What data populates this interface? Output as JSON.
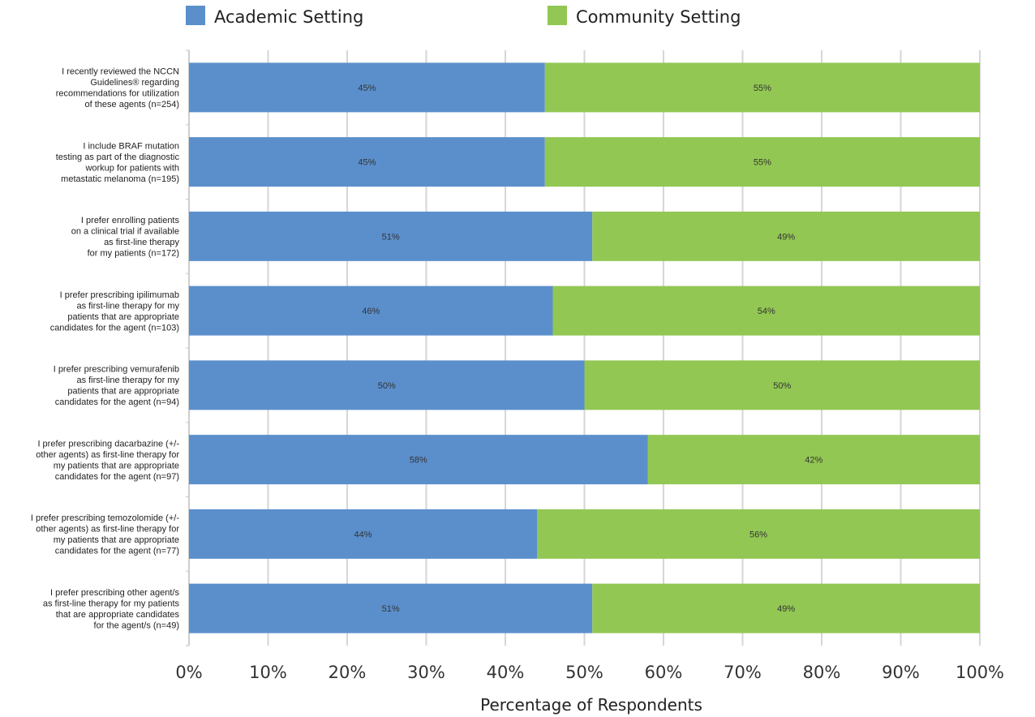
{
  "chart_data": {
    "type": "bar",
    "orientation": "horizontal",
    "stacked": true,
    "categories": [
      "I recently reviewed the NCCN Guidelines® regarding recommendations for  utilization of these agents (n=254)",
      "I include BRAF mutation testing as part of the diagnostic workup for patients with metastatic melanoma (n=195)",
      "I prefer enrolling patients on a clinical trial if available as first-line therapy for my patients (n=172)",
      "I prefer prescribing ipilimumab as first-line therapy for my patients that are appropriate candidates for the agent (n=103)",
      "I prefer prescribing vemurafenib as first-line therapy for my patients that are appropriate candidates for the agent (n=94)",
      "I prefer prescribing dacarbazine (+/- other agents) as first-line therapy for my patients that are appropriate candidates for the agent (n=97)",
      "I prefer prescribing temozolomide (+/- other agents) as first-line therapy for my patients that are appropriate candidates for the agent (n=77)",
      "I prefer prescribing other agent/s as first-line therapy for my patients that are appropriate candidates for the agent/s (n=49)"
    ],
    "category_lines": [
      [
        "I recently reviewed the NCCN",
        "Guidelines® regarding",
        "recommendations for  utilization",
        "of these agents (n=254)"
      ],
      [
        "I include BRAF mutation",
        "testing as part of the diagnostic",
        "workup for patients with",
        "metastatic melanoma (n=195)"
      ],
      [
        "I prefer enrolling patients",
        "on a clinical trial if available",
        "as first-line therapy",
        "for my patients (n=172)"
      ],
      [
        "I prefer prescribing ipilimumab",
        "as first-line therapy for my",
        "patients that are appropriate",
        "candidates for the agent (n=103)"
      ],
      [
        "I prefer prescribing vemurafenib",
        "as first-line therapy for my",
        "patients that are appropriate",
        "candidates for the agent (n=94)"
      ],
      [
        "I prefer prescribing dacarbazine (+/-",
        "other agents) as first-line therapy for",
        "my patients that are appropriate",
        "candidates for the agent (n=97)"
      ],
      [
        "I prefer prescribing temozolomide (+/-",
        "other agents) as first-line therapy for",
        "my patients that are appropriate",
        "candidates for the agent (n=77)"
      ],
      [
        "I prefer prescribing other agent/s",
        "as first-line therapy for my patients",
        "that are appropriate candidates",
        "for the agent/s (n=49)"
      ]
    ],
    "series": [
      {
        "name": "Academic Setting",
        "color": "#5b8fcc",
        "values": [
          45,
          45,
          51,
          46,
          50,
          58,
          44,
          51
        ],
        "labels": [
          "45%",
          "45%",
          "51%",
          "46%",
          "50%",
          "58%",
          "44%",
          "51%"
        ]
      },
      {
        "name": "Community Setting",
        "color": "#92c753",
        "values": [
          55,
          55,
          49,
          54,
          50,
          42,
          56,
          49
        ],
        "labels": [
          "55%",
          "55%",
          "49%",
          "54%",
          "50%",
          "42%",
          "56%",
          "49%"
        ]
      }
    ],
    "xlabel": "Percentage of Respondents",
    "ylabel": "",
    "xlim": [
      0,
      100
    ],
    "xticks": [
      "0%",
      "10%",
      "20%",
      "30%",
      "40%",
      "50%",
      "60%",
      "70%",
      "80%",
      "90%",
      "100%"
    ],
    "grid": true,
    "legend_position": "top"
  }
}
